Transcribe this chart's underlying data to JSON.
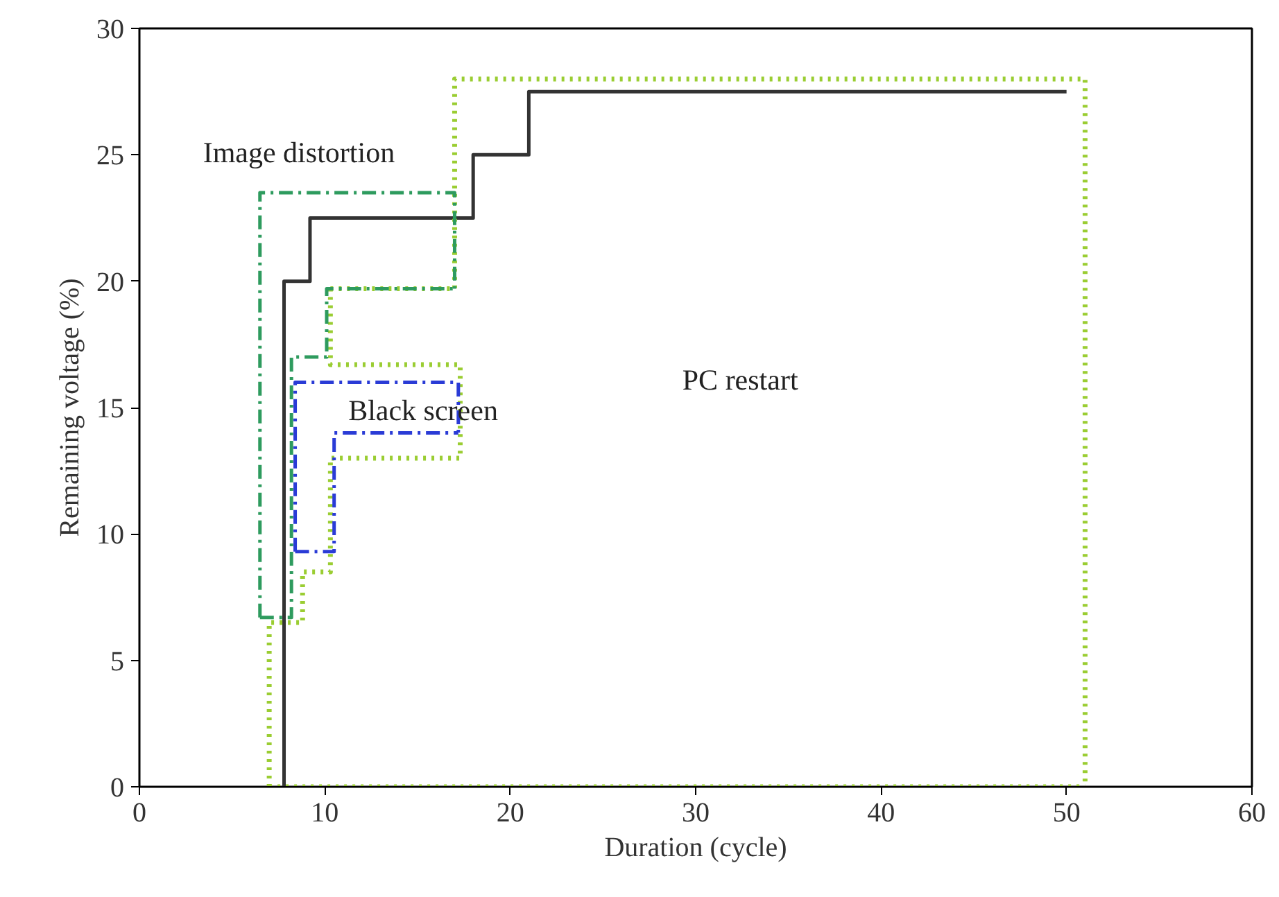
{
  "chart_data": {
    "type": "line",
    "xlabel": "Duration (cycle)",
    "ylabel": "Remaining voltage (%)",
    "xlim": [
      0,
      60
    ],
    "xticks": [
      0,
      10,
      20,
      30,
      40,
      50,
      60
    ],
    "ylim": [
      0,
      30
    ],
    "yticks": [
      0,
      5,
      10,
      15,
      20,
      25,
      30
    ],
    "grid": false,
    "marker": "none",
    "series": [
      {
        "color": "#333333",
        "line_style": "solid",
        "x": [
          7.8,
          7.8,
          9.2,
          9.2,
          18,
          18,
          21,
          21,
          50
        ],
        "values": [
          0,
          20,
          20,
          22.5,
          22.5,
          25,
          25,
          27.5,
          27.5
        ]
      },
      {
        "color": "#9acd32",
        "line_style": "dotted",
        "x": [
          7,
          7,
          8.8,
          8.8,
          10.3,
          10.3,
          17.3,
          17.3
        ],
        "values": [
          0,
          6.5,
          6.5,
          8.5,
          8.5,
          13,
          13,
          16.7
        ]
      },
      {
        "color": "#9acd32",
        "line_style": "dotted",
        "x": [
          10.3,
          10.3,
          17.3
        ],
        "values": [
          19.7,
          16.7,
          16.7
        ]
      },
      {
        "color": "#9acd32",
        "line_style": "dotted",
        "x": [
          10.3,
          17,
          17,
          51,
          51
        ],
        "values": [
          19.7,
          19.7,
          28,
          28,
          0
        ]
      },
      {
        "color": "#9acd32",
        "line_style": "dotted",
        "x": [
          7,
          51
        ],
        "values": [
          0,
          0
        ]
      },
      {
        "color": "#2e9b5e",
        "line_style": "dashdot",
        "x": [
          6.5,
          6.5,
          17,
          17
        ],
        "values": [
          6.7,
          23.5,
          23.5,
          19.7
        ]
      },
      {
        "color": "#2e9b5e",
        "line_style": "dashdot",
        "x": [
          6.5,
          8.2,
          8.2,
          10.1,
          10.1,
          17
        ],
        "values": [
          6.7,
          6.7,
          17,
          17,
          19.7,
          19.7
        ]
      },
      {
        "color": "#2a3bd6",
        "line_style": "dashdot",
        "x": [
          8.4,
          8.4,
          17.2,
          17.2
        ],
        "values": [
          9.3,
          16,
          16,
          14
        ]
      },
      {
        "color": "#2a3bd6",
        "line_style": "dashdot",
        "x": [
          8.4,
          10.5,
          10.5,
          17.2
        ],
        "values": [
          9.3,
          9.3,
          14,
          14
        ]
      }
    ],
    "annotations": [
      "Image distortion",
      "Black screen",
      "PC restart"
    ]
  }
}
